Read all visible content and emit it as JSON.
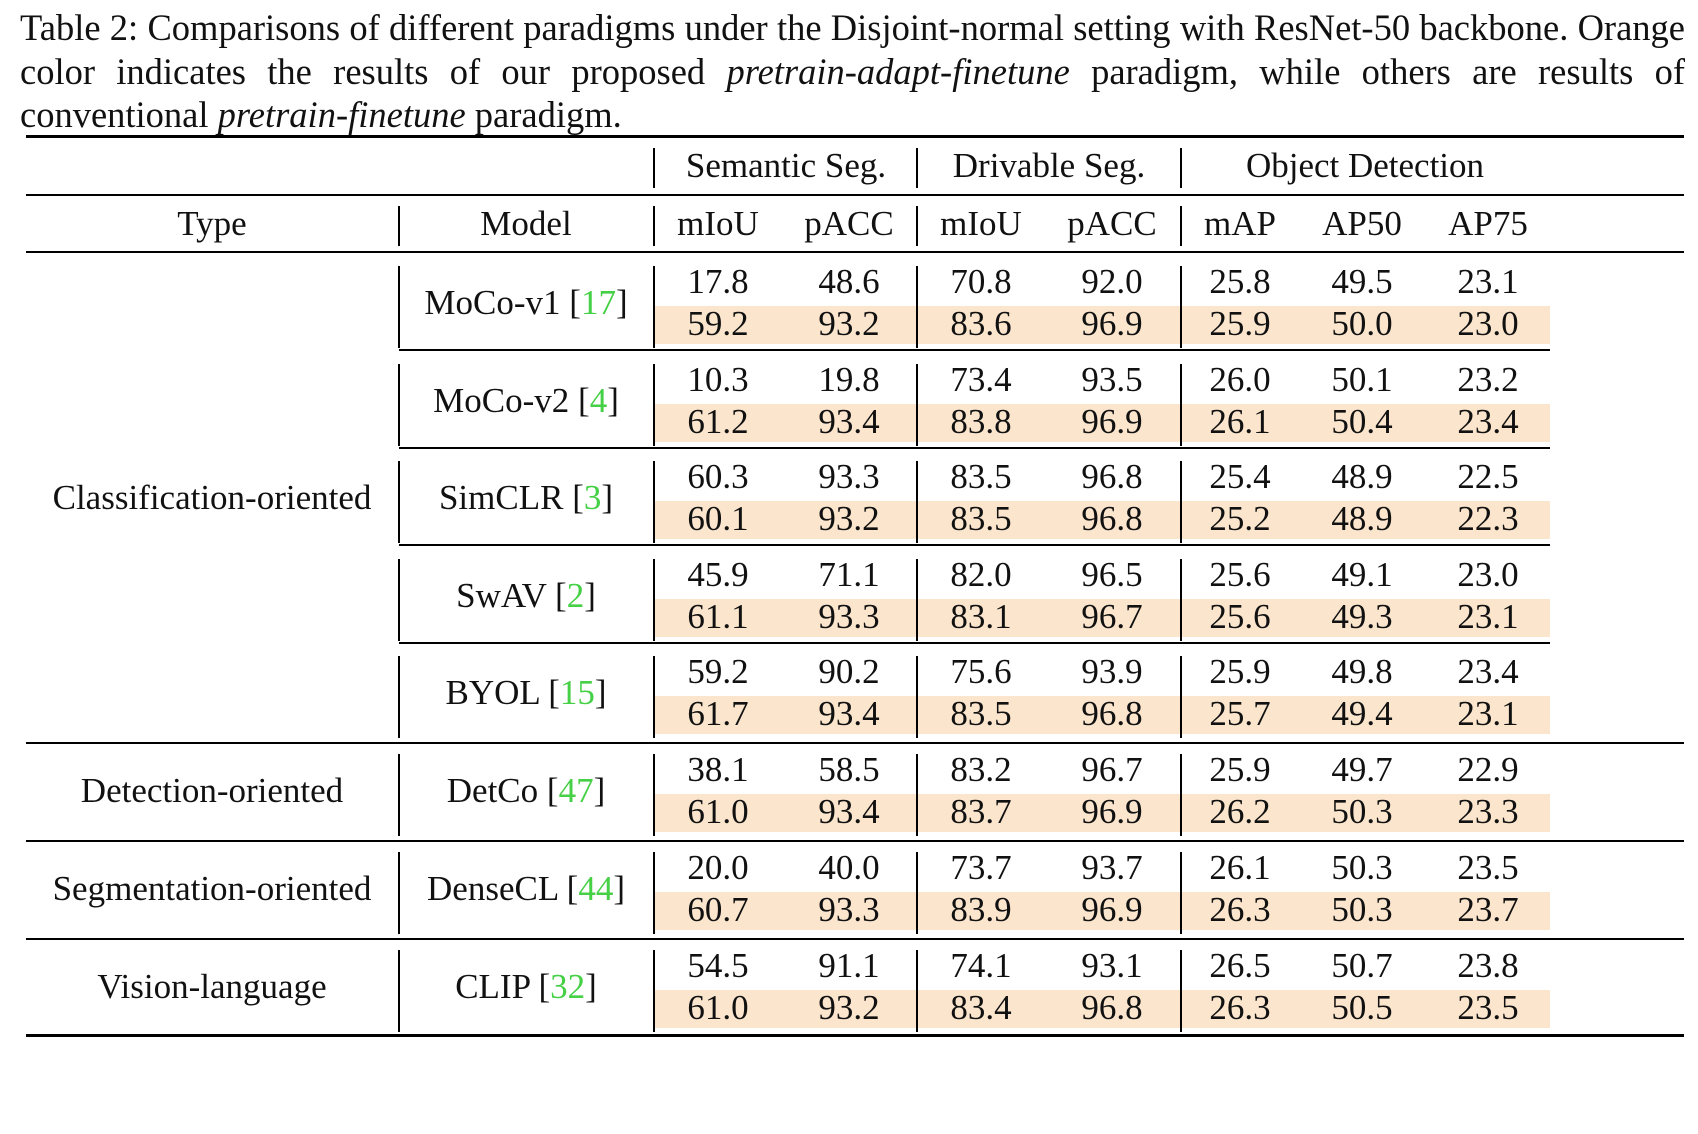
{
  "caption": {
    "part1": "Table 2: Comparisons of different paradigms under the Disjoint-normal setting with ResNet-50 backbone. Orange color indicates the results of our proposed ",
    "em1": "pretrain-adapt-finetune",
    "part2": " paradigm, while others are results of conventional ",
    "em2": "pretrain-finetune",
    "part3": " paradigm."
  },
  "group_headers": [
    "Semantic Seg.",
    "Drivable Seg.",
    "Object Detection"
  ],
  "column_headers": [
    "Type",
    "Model",
    "mIoU",
    "pACC",
    "mIoU",
    "pACC",
    "mAP",
    "AP50",
    "AP75"
  ],
  "highlight_color": "#fbe5cd",
  "citation_color": "#45d045",
  "type_groups": [
    "Classification-oriented",
    "Detection-oriented",
    "Segmentation-oriented",
    "Vision-language"
  ],
  "models": [
    {
      "name": "MoCo-v1",
      "cite": "17",
      "baseline": [
        "17.8",
        "48.6",
        "70.8",
        "92.0",
        "25.8",
        "49.5",
        "23.1"
      ],
      "ours": [
        "59.2",
        "93.2",
        "83.6",
        "96.9",
        "25.9",
        "50.0",
        "23.0"
      ]
    },
    {
      "name": "MoCo-v2",
      "cite": "4",
      "baseline": [
        "10.3",
        "19.8",
        "73.4",
        "93.5",
        "26.0",
        "50.1",
        "23.2"
      ],
      "ours": [
        "61.2",
        "93.4",
        "83.8",
        "96.9",
        "26.1",
        "50.4",
        "23.4"
      ]
    },
    {
      "name": "SimCLR",
      "cite": "3",
      "baseline": [
        "60.3",
        "93.3",
        "83.5",
        "96.8",
        "25.4",
        "48.9",
        "22.5"
      ],
      "ours": [
        "60.1",
        "93.2",
        "83.5",
        "96.8",
        "25.2",
        "48.9",
        "22.3"
      ]
    },
    {
      "name": "SwAV",
      "cite": "2",
      "baseline": [
        "45.9",
        "71.1",
        "82.0",
        "96.5",
        "25.6",
        "49.1",
        "23.0"
      ],
      "ours": [
        "61.1",
        "93.3",
        "83.1",
        "96.7",
        "25.6",
        "49.3",
        "23.1"
      ]
    },
    {
      "name": "BYOL",
      "cite": "15",
      "baseline": [
        "59.2",
        "90.2",
        "75.6",
        "93.9",
        "25.9",
        "49.8",
        "23.4"
      ],
      "ours": [
        "61.7",
        "93.4",
        "83.5",
        "96.8",
        "25.7",
        "49.4",
        "23.1"
      ]
    },
    {
      "name": "DetCo",
      "cite": "47",
      "baseline": [
        "38.1",
        "58.5",
        "83.2",
        "96.7",
        "25.9",
        "49.7",
        "22.9"
      ],
      "ours": [
        "61.0",
        "93.4",
        "83.7",
        "96.9",
        "26.2",
        "50.3",
        "23.3"
      ]
    },
    {
      "name": "DenseCL",
      "cite": "44",
      "baseline": [
        "20.0",
        "40.0",
        "73.7",
        "93.7",
        "26.1",
        "50.3",
        "23.5"
      ],
      "ours": [
        "60.7",
        "93.3",
        "83.9",
        "96.9",
        "26.3",
        "50.3",
        "23.7"
      ]
    },
    {
      "name": "CLIP",
      "cite": "32",
      "baseline": [
        "54.5",
        "91.1",
        "74.1",
        "93.1",
        "26.5",
        "50.7",
        "23.8"
      ],
      "ours": [
        "61.0",
        "93.2",
        "83.4",
        "96.8",
        "26.3",
        "50.5",
        "23.5"
      ]
    }
  ]
}
